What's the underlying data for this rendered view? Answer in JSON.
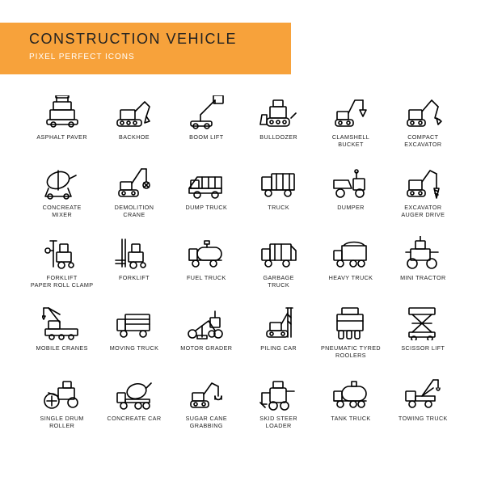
{
  "banner": {
    "title": "CONSTRUCTION VEHICLE",
    "subtitle": "PIXEL PERFECT ICONS",
    "bg_color": "#f7a23b",
    "title_color": "#222222",
    "subtitle_color": "#ffffff"
  },
  "grid": {
    "cols": 6,
    "rows": 5,
    "icon_stroke": "#000000",
    "icon_stroke_width": 1.6,
    "label_fontsize": 7.2,
    "label_color": "#222222"
  },
  "icons": [
    {
      "name": "asphalt-paver",
      "label": "ASPHALT PAVER",
      "svg": "<rect x='10' y='18' width='30' height='12' rx='1'/><rect x='14' y='8' width='22' height='10' rx='1'/><rect x='6' y='30' width='38' height='6' rx='2'/><line x1='18' y1='8' x2='18' y2='2'/><line x1='32' y1='8' x2='32' y2='2'/><rect x='17' y='0' width='16' height='3' rx='1'/><circle cx='14' cy='36' r='3'/><circle cx='36' cy='36' r='3'/>"
    },
    {
      "name": "backhoe",
      "label": "BACKHOE",
      "svg": "<rect x='4' y='30' width='30' height='8' rx='3'/><circle cx='10' cy='34' r='2'/><circle cx='18' cy='34' r='2'/><circle cx='26' cy='34' r='2'/><rect x='8' y='18' width='18' height='12' rx='1'/><path d='M26 20 L38 8 L44 14 L40 26'/><path d='M40 26 L44 32 L38 34 Z'/>"
    },
    {
      "name": "boom-lift",
      "label": "BOOM LIFT",
      "svg": "<rect x='6' y='32' width='26' height='6' rx='2'/><circle cx='12' cy='38' r='3'/><circle cx='26' cy='38' r='3'/><path d='M18 32 L18 24 L36 6'/><rect x='34' y='0' width='12' height='10' rx='1'/><line x1='36' y1='10' x2='36' y2='6'/>"
    },
    {
      "name": "bulldozer",
      "label": "BULLDOZER",
      "svg": "<rect x='10' y='28' width='28' height='10' rx='4'/><circle cx='16' cy='33' r='2'/><circle cx='24' cy='33' r='2'/><circle cx='32' cy='33' r='2'/><rect x='14' y='14' width='20' height='14' rx='1'/><rect x='18' y='6' width='12' height='8' rx='1'/><path d='M4 24 L10 24 L10 36 L2 36 Z'/><line x1='40' y1='28' x2='46' y2='22'/>"
    },
    {
      "name": "clamshell-bucket",
      "label": "CLAMSHELL\nBUCKET",
      "svg": "<rect x='6' y='30' width='22' height='8' rx='3'/><circle cx='12' cy='34' r='2'/><circle cx='22' cy='34' r='2'/><rect x='8' y='20' width='14' height='10' rx='1'/><path d='M22 22 L30 6 L40 6'/><path d='M40 6 L40 18'/><path d='M36 18 L44 18 L40 26 Z'/>"
    },
    {
      "name": "compact-excavator",
      "label": "COMPACT\nEXCAVATOR",
      "svg": "<rect x='6' y='30' width='22' height='8' rx='3'/><circle cx='12' cy='34' r='2'/><circle cx='22' cy='34' r='2'/><rect x='8' y='18' width='16' height='12' rx='1'/><path d='M24 20 L36 6 L44 14'/><path d='M44 14 L40 28 L46 30'/><path d='M42 28 L48 32 L44 36 Z'/>"
    },
    {
      "name": "concreate-mixer",
      "label": "CONCREATE\nMIXER",
      "svg": "<ellipse cx='20' cy='18' rx='14' ry='10' transform='rotate(-20 20 18)'/><line x1='20' y1='6' x2='20' y2='30'/><path d='M8 28 L4 38 L36 38 L32 28'/><circle cx='10' cy='38' r='3'/><circle cx='30' cy='38' r='3'/><path d='M34 16 L42 12'/>"
    },
    {
      "name": "demolition-crane",
      "label": "DEMOLITION\nCRANE",
      "svg": "<rect x='6' y='30' width='24' height='8' rx='3'/><circle cx='12' cy='34' r='2'/><circle cx='24' cy='34' r='2'/><rect x='8' y='20' width='14' height='10' rx='1'/><path d='M22 22 L34 4'/><line x1='34' y1='4' x2='40' y2='4'/><line x1='40' y1='4' x2='40' y2='20'/><circle cx='40' cy='24' r='4'/><line x1='37' y1='21' x2='43' y2='27'/><line x1='43' y1='21' x2='37' y2='27'/>"
    },
    {
      "name": "dump-truck",
      "label": "DUMP TRUCK",
      "svg": "<path d='M4 28 L14 14 L44 14 L44 28 Z'/><rect x='4' y='28' width='40' height='6'/><rect x='6' y='18' width='10' height='10' rx='1'/><circle cx='14' cy='36' r='4'/><circle cx='36' cy='36' r='4'/><line x1='20' y1='14' x2='20' y2='28'/><line x1='28' y1='14' x2='28' y2='28'/><line x1='36' y1='14' x2='36' y2='28'/>"
    },
    {
      "name": "truck",
      "label": "TRUCK",
      "svg": "<rect x='4' y='14' width='12' height='16' rx='1'/><rect x='16' y='10' width='28' height='20' rx='1'/><circle cx='12' cy='34' r='4'/><circle cx='36' cy='34' r='4'/><line x1='4' y1='30' x2='44' y2='30'/><line x1='22' y1='10' x2='22' y2='30'/><line x1='30' y1='10' x2='30' y2='30'/><line x1='38' y1='10' x2='38' y2='30'/>"
    },
    {
      "name": "dumper",
      "label": "DUMPER",
      "svg": "<path d='M4 18 L22 18 L26 28 L4 28 Z'/><rect x='28' y='16' width='14' height='14' rx='1'/><circle cx='12' cy='34' r='5'/><circle cx='36' cy='34' r='5'/><line x1='32' y1='16' x2='32' y2='8'/><circle cx='32' cy='7' r='2'/>"
    },
    {
      "name": "excavator-auger",
      "label": "EXCAVATOR\nAUGER DRIVE",
      "svg": "<rect x='6' y='30' width='22' height='8' rx='3'/><circle cx='12' cy='34' r='2'/><circle cx='22' cy='34' r='2'/><rect x='8' y='18' width='16' height='12' rx='1'/><path d='M24 20 L34 6 L42 10'/><line x1='42' y1='10' x2='42' y2='28'/><path d='M39 28 L45 28 L42 40 Z'/><path d='M40 30 L44 32 M40 34 L44 36'/>"
    },
    {
      "name": "forklift-clamp",
      "label": "FORKLIFT\nPAPER ROLL CLAMP",
      "svg": "<rect x='18' y='20' width='18' height='12' rx='1'/><rect x='22' y='10' width='10' height='10' rx='1'/><circle cx='24' cy='36' r='4'/><circle cx='36' cy='36' r='3'/><line x1='14' y1='6' x2='14' y2='38'/><line x1='10' y1='6' x2='18' y2='6'/><path d='M4 18 C4 14 10 14 10 18 C10 22 4 22 4 18'/><line x1='10' y1='18' x2='14' y2='18'/>"
    },
    {
      "name": "forklift",
      "label": "FORKLIFT",
      "svg": "<rect x='18' y='20' width='18' height='12' rx='1'/><rect x='22' y='10' width='10' height='10' rx='1'/><circle cx='24' cy='36' r='4'/><circle cx='36' cy='36' r='3'/><line x1='14' y1='4' x2='14' y2='38'/><line x1='10' y1='4' x2='10' y2='38'/><line x1='2' y1='30' x2='14' y2='30'/><line x1='2' y1='34' x2='14' y2='34'/>"
    },
    {
      "name": "fuel-truck",
      "label": "FUEL TRUCK",
      "svg": "<rect x='4' y='16' width='10' height='14' rx='1'/><rect x='14' y='14' width='30' height='16' rx='8'/><circle cx='12' cy='34' r='4'/><circle cx='34' cy='34' r='4'/><line x1='4' y1='30' x2='44' y2='30'/><line x1='26' y1='10' x2='26' y2='14'/><rect x='23' y='6' width='6' height='4'/>"
    },
    {
      "name": "garbage-truck",
      "label": "GARBAGE\nTRUCK",
      "svg": "<rect x='4' y='16' width='10' height='14' rx='1'/><rect x='14' y='10' width='26' height='20' rx='1'/><path d='M40 12 L46 18 L46 30 L40 30'/><circle cx='12' cy='34' r='4'/><circle cx='34' cy='34' r='4'/><line x1='20' y1='10' x2='20' y2='30'/><line x1='28' y1='10' x2='28' y2='30'/>"
    },
    {
      "name": "heavy-truck",
      "label": "HEAVY TRUCK",
      "svg": "<rect x='4' y='18' width='10' height='12' rx='1'/><path d='M14 12 L44 12 L44 30 L14 30 Z'/><path d='M16 12 C20 6 38 6 42 12'/><circle cx='12' cy='34' r='4'/><circle cx='28' cy='34' r='4'/><circle cx='38' cy='34' r='4'/>"
    },
    {
      "name": "mini-tractor",
      "label": "MINI TRACTOR",
      "svg": "<rect x='10' y='16' width='24' height='14' rx='1'/><rect x='16' y='6' width='12' height='10' rx='1'/><circle cx='12' cy='34' r='6'/><circle cx='36' cy='34' r='6'/><line x1='4' y1='20' x2='10' y2='20'/><line x1='34' y1='20' x2='44' y2='20'/><line x1='22' y1='6' x2='22' y2='0'/>"
    },
    {
      "name": "mobile-cranes",
      "label": "MOBILE CRANES",
      "svg": "<rect x='4' y='28' width='40' height='8' rx='1'/><circle cx='12' cy='38' r='3'/><circle cx='24' cy='38' r='3'/><circle cx='36' cy='38' r='3'/><rect x='8' y='18' width='14' height='10' rx='1'/><path d='M22 20 L8 2'/><line x1='8' y1='2' x2='2' y2='2'/><line x1='2' y1='2' x2='2' y2='12'/><path d='M0 12 L4 12 L2 16 Z'/><line x1='8' y1='2' x2='22' y2='10'/>"
    },
    {
      "name": "moving-truck",
      "label": "MOVING TRUCK",
      "svg": "<rect x='4' y='16' width='10' height='14' rx='1'/><rect x='14' y='10' width='30' height='20' rx='1'/><circle cx='12' cy='34' r='4'/><circle cx='36' cy='34' r='4'/><line x1='14' y1='16' x2='44' y2='16'/><line x1='14' y1='22' x2='44' y2='22'/>"
    },
    {
      "name": "motor-grader",
      "label": "MOTOR GRADER",
      "svg": "<circle cx='8' cy='34' r='5'/><circle cx='40' cy='34' r='5'/><circle cx='32' cy='34' r='4'/><path d='M12 30 L28 18 L36 30'/><rect x='30' y='14' width='12' height='12' rx='1'/><line x1='20' y1='24' x2='20' y2='38'/><path d='M14 36 L26 36 L26 40 L14 40 Z'/><line x1='36' y1='14' x2='36' y2='6'/>"
    },
    {
      "name": "piling-car",
      "label": "PILING CAR",
      "svg": "<rect x='10' y='30' width='26' height='8' rx='3'/><circle cx='16' cy='34' r='2'/><circle cx='30' cy='34' r='2'/><rect x='14' y='20' width='14' height='10' rx='1'/><line x1='36' y1='2' x2='36' y2='38'/><line x1='40' y1='2' x2='40' y2='38'/><line x1='34' y1='2' x2='42' y2='2'/><line x1='36' y1='10' x2='40' y2='14'/><line x1='36' y1='18' x2='40' y2='22'/><line x1='28' y1='22' x2='36' y2='8'/>"
    },
    {
      "name": "pneumatic-roller",
      "label": "PNEUMATIC TYRED\nROOLERS",
      "svg": "<rect x='8' y='10' width='32' height='20' rx='1'/><rect x='14' y='2' width='20' height='8' rx='1'/><rect x='10' y='30' width='6' height='10' rx='2'/><rect x='20' y='30' width='6' height='10' rx='2'/><rect x='30' y='30' width='6' height='10' rx='2'/><line x1='8' y1='18' x2='40' y2='18'/>"
    },
    {
      "name": "scissor-lift",
      "label": "SCISSOR LIFT",
      "svg": "<rect x='8' y='2' width='32' height='8' rx='1'/><rect x='8' y='32' width='32' height='6' rx='1'/><circle cx='14' cy='40' r='3'/><circle cx='34' cy='40' r='3'/><line x1='12' y1='10' x2='36' y2='32'/><line x1='36' y1='10' x2='12' y2='32'/><line x1='12' y1='21' x2='36' y2='21'/>"
    },
    {
      "name": "single-drum-roller",
      "label": "SINGLE DRUM\nROLLER",
      "svg": "<circle cx='12' cy='30' r='9'/><circle cx='38' cy='32' r='6'/><rect x='20' y='14' width='20' height='14' rx='1'/><rect x='26' y='6' width='10' height='8' rx='1'/><path d='M20 24 L8 20'/><line x1='12' y1='24' x2='12' y2='36'/><line x1='6' y1='30' x2='18' y2='30'/>"
    },
    {
      "name": "concreate-car",
      "label": "CONCREATE CAR",
      "svg": "<rect x='4' y='20' width='10' height='12' rx='1'/><ellipse cx='28' cy='18' rx='12' ry='9' transform='rotate(-15 28 18)'/><rect x='14' y='28' width='30' height='4'/><circle cx='12' cy='36' r='4'/><circle cx='30' cy='36' r='4'/><circle cx='40' cy='36' r='4'/><path d='M40 14 L46 8'/>"
    },
    {
      "name": "sugar-cane",
      "label": "SUGAR CANE\nGRABBING",
      "svg": "<rect x='6' y='30' width='22' height='8' rx='3'/><circle cx='12' cy='34' r='2'/><circle cx='22' cy='34' r='2'/><rect x='8' y='20' width='14' height='10' rx='1'/><path d='M22 22 L32 8 L40 12'/><line x1='40' y1='12' x2='40' y2='24'/><path d='M36 24 C36 30 44 30 44 24'/><line x1='36' y1='24' x2='36' y2='28'/><line x1='44' y1='24' x2='44' y2='28'/>"
    },
    {
      "name": "skid-steer",
      "label": "SKID STEER\nLOADER",
      "svg": "<rect x='14' y='14' width='20' height='18' rx='2'/><rect x='18' y='6' width='12' height='8' rx='1'/><circle cx='18' cy='36' r='5'/><circle cx='32' cy='36' r='5'/><path d='M14 20 L4 20 L4 34 L10 34'/><path d='M2 32 L8 38'/><line x1='34' y1='18' x2='44' y2='18'/>"
    },
    {
      "name": "tank-truck",
      "label": "TANK TRUCK",
      "svg": "<rect x='4' y='18' width='10' height='12' rx='1'/><rect x='14' y='12' width='30' height='18' rx='9'/><circle cx='12' cy='34' r='4'/><circle cx='28' cy='34' r='4'/><circle cx='38' cy='34' r='4'/><line x1='4' y1='30' x2='44' y2='30'/><rect x='26' y='6' width='6' height='6'/>"
    },
    {
      "name": "towing-truck",
      "label": "TOWING TRUCK",
      "svg": "<rect x='4' y='18' width='12' height='12' rx='1'/><rect x='16' y='24' width='24' height='6'/><circle cx='12' cy='34' r='4'/><circle cx='32' cy='34' r='4'/><path d='M24 24 L38 4'/><line x1='38' y1='4' x2='44' y2='4'/><line x1='44' y1='4' x2='44' y2='14'/><path d='M42 14 C42 18 46 18 46 14'/><line x1='24' y1='24' x2='38' y2='14'/>"
    }
  ]
}
